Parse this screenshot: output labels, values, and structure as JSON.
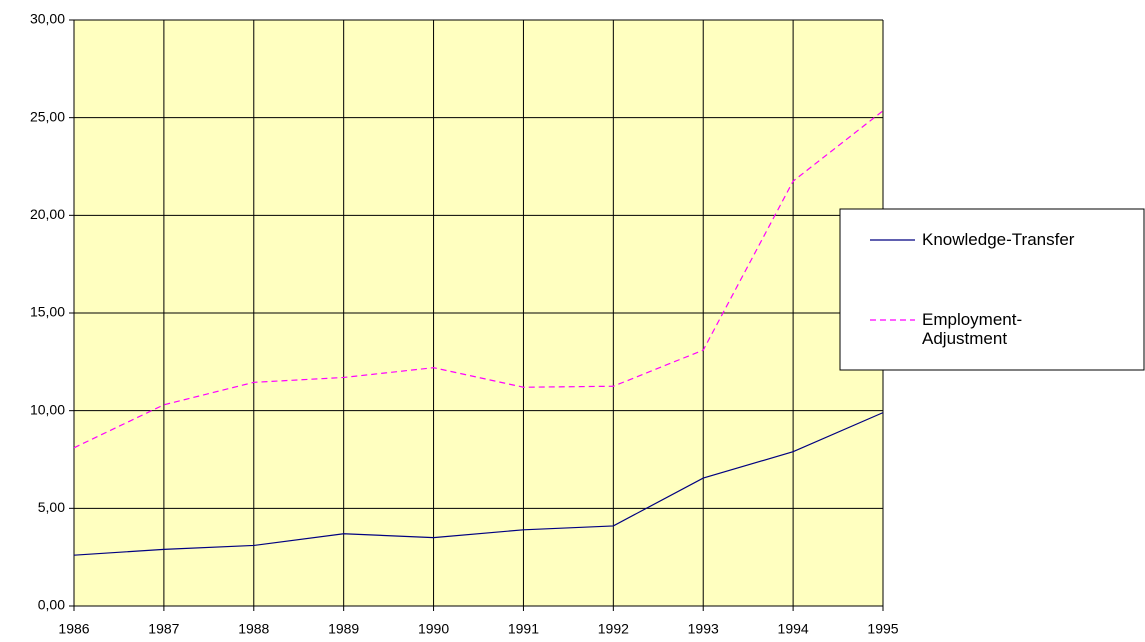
{
  "chart_data": {
    "type": "line",
    "x": [
      1986,
      1987,
      1988,
      1989,
      1990,
      1991,
      1992,
      1993,
      1994,
      1995
    ],
    "xlim": [
      1986,
      1995
    ],
    "xticks": [
      1986,
      1987,
      1988,
      1989,
      1990,
      1991,
      1992,
      1993,
      1994,
      1995
    ],
    "ylim": [
      0,
      30
    ],
    "yticks": [
      {
        "value": 0,
        "label": "0,00"
      },
      {
        "value": 5,
        "label": "5,00"
      },
      {
        "value": 10,
        "label": "10,00"
      },
      {
        "value": 15,
        "label": "15,00"
      },
      {
        "value": 20,
        "label": "20,00"
      },
      {
        "value": 25,
        "label": "25,00"
      },
      {
        "value": 30,
        "label": "30,00"
      }
    ],
    "grid": true,
    "legend": "right",
    "background": "#ffffc0",
    "series": [
      {
        "name": "Knowledge-Transfer",
        "color": "#000080",
        "dash": "solid",
        "values": [
          2.6,
          2.9,
          3.1,
          3.7,
          3.5,
          3.9,
          4.1,
          6.55,
          7.9,
          9.9
        ]
      },
      {
        "name": "Employment-Adjustment",
        "color": "#ff00ff",
        "dash": "dashed",
        "values": [
          8.1,
          10.3,
          11.45,
          11.7,
          12.2,
          11.2,
          11.25,
          13.1,
          21.75,
          25.35
        ]
      }
    ]
  }
}
